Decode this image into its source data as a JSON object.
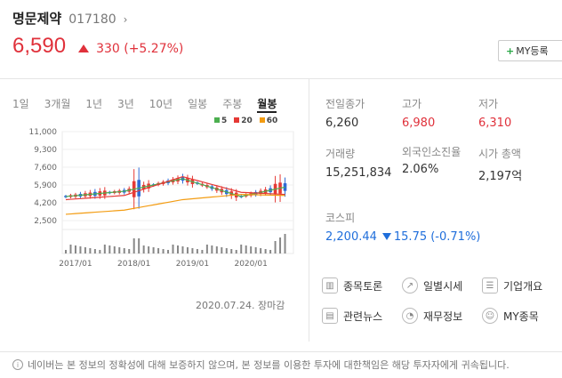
{
  "stock": {
    "name": "명문제약",
    "code": "017180",
    "price": "6,590",
    "change": "330 (+5.27%)",
    "my_button": "MY등록"
  },
  "tabs": [
    "1일",
    "3개월",
    "1년",
    "3년",
    "10년",
    "일봉",
    "주봉",
    "월봉"
  ],
  "active_tab": "월봉",
  "chart_data": {
    "type": "line",
    "legend": [
      "5",
      "20",
      "60"
    ],
    "legend_colors": [
      "#4caf50",
      "#e53935",
      "#f39c12"
    ],
    "y_ticks": [
      "11,000",
      "9,300",
      "7,600",
      "5,900",
      "4,200",
      "2,500"
    ],
    "x_ticks": [
      "2017/01",
      "2018/01",
      "2019/01",
      "2020/01"
    ],
    "ylim": [
      2500,
      11000
    ],
    "x": [
      0,
      12,
      24,
      36,
      45
    ],
    "series": [
      {
        "name": "5",
        "values": [
          4800,
          5300,
          6500,
          4800,
          5700
        ]
      },
      {
        "name": "20",
        "values": [
          4500,
          4900,
          6700,
          5200,
          5000
        ]
      },
      {
        "name": "60",
        "values": [
          3100,
          3500,
          4500,
          5000,
          4900
        ]
      }
    ]
  },
  "date": "2020.07.24. 장마감",
  "stats": {
    "prev_close_label": "전일종가",
    "prev_close": "6,260",
    "high_label": "고가",
    "high": "6,980",
    "low_label": "저가",
    "low": "6,310",
    "volume_label": "거래량",
    "volume": "15,251,834",
    "foreign_label": "외국인소진율",
    "foreign": "2.06%",
    "mcap_label": "시가 총액",
    "mcap": "2,197억",
    "kosdaq_label": "코스피",
    "kosdaq": "2,200.44",
    "kosdaq_change": "15.75 (-0.71%)"
  },
  "links": [
    "종목토론",
    "일별시세",
    "기업개요",
    "관련뉴스",
    "재무정보",
    "MY종목"
  ],
  "footer": "네이버는 본 정보의 정확성에 대해 보증하지 않으며, 본 정보를 이용한 투자에 대한책임은 해당 투자자에게 귀속됩니다."
}
